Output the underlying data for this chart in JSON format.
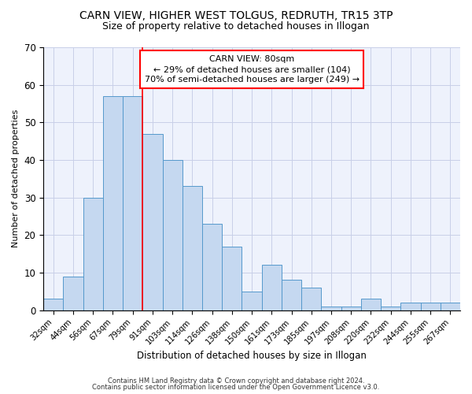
{
  "title1": "CARN VIEW, HIGHER WEST TOLGUS, REDRUTH, TR15 3TP",
  "title2": "Size of property relative to detached houses in Illogan",
  "xlabel": "Distribution of detached houses by size in Illogan",
  "ylabel": "Number of detached properties",
  "categories": [
    "32sqm",
    "44sqm",
    "56sqm",
    "67sqm",
    "79sqm",
    "91sqm",
    "103sqm",
    "114sqm",
    "126sqm",
    "138sqm",
    "150sqm",
    "161sqm",
    "173sqm",
    "185sqm",
    "197sqm",
    "208sqm",
    "220sqm",
    "232sqm",
    "244sqm",
    "255sqm",
    "267sqm"
  ],
  "values": [
    3,
    9,
    30,
    57,
    57,
    47,
    40,
    33,
    23,
    17,
    5,
    12,
    8,
    6,
    1,
    1,
    3,
    1,
    2,
    2,
    2
  ],
  "bar_color": "#c5d8f0",
  "bar_edge_color": "#5599cc",
  "red_line_x": 4.5,
  "annotation_line1": "CARN VIEW: 80sqm",
  "annotation_line2": "← 29% of detached houses are smaller (104)",
  "annotation_line3": "70% of semi-detached houses are larger (249) →",
  "annotation_fontsize": 8.0,
  "footer1": "Contains HM Land Registry data © Crown copyright and database right 2024.",
  "footer2": "Contains public sector information licensed under the Open Government Licence v3.0.",
  "ylim": [
    0,
    70
  ],
  "yticks": [
    0,
    10,
    20,
    30,
    40,
    50,
    60,
    70
  ],
  "background_color": "#eef2fc",
  "grid_color": "#c8cfe8",
  "title1_fontsize": 10,
  "title2_fontsize": 9
}
